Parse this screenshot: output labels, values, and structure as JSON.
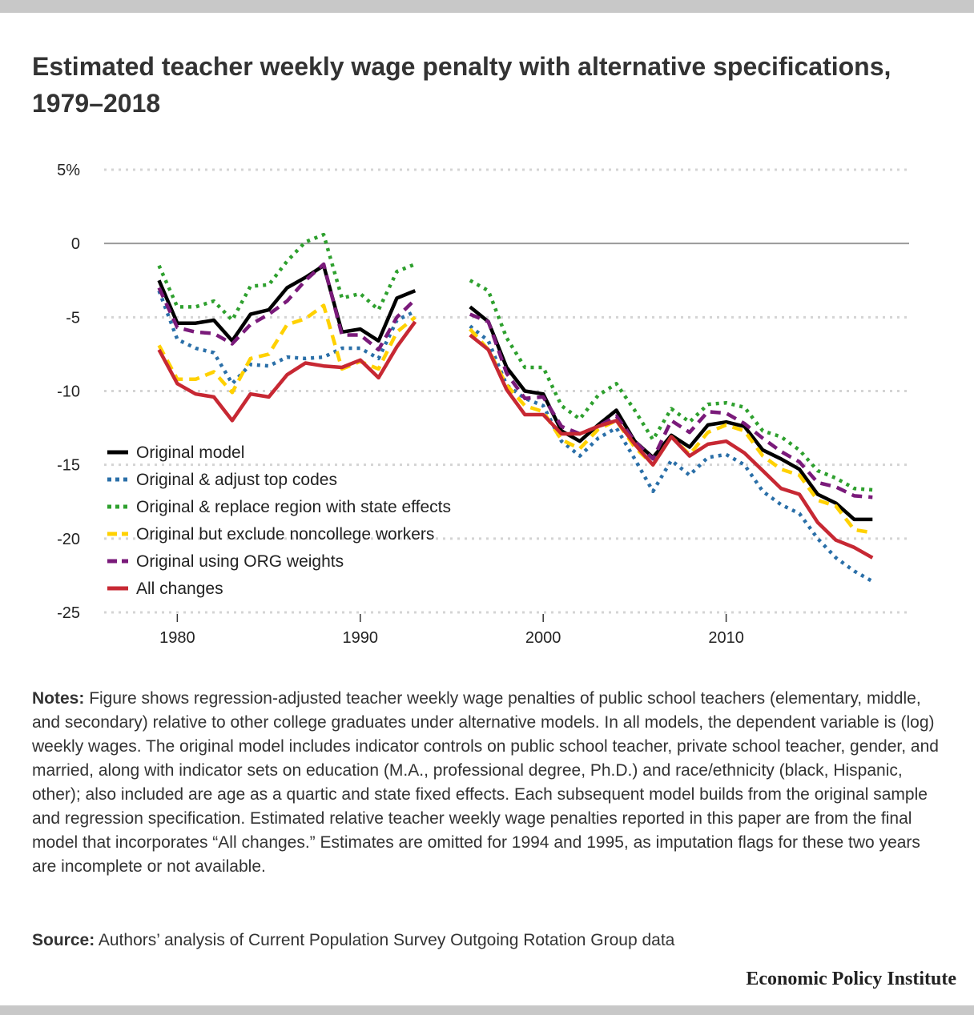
{
  "title": "Estimated teacher weekly wage penalty with alternative specifications, 1979–2018",
  "notes": {
    "label": "Notes:",
    "text": "Figure shows regression-adjusted teacher weekly wage penalties of public school teachers (elementary, middle, and secondary) relative to other college graduates under alternative models. In all models, the dependent variable is (log) weekly wages. The original model includes indicator controls on public school teacher, private school teacher, gender, and married, along with indicator sets on education (M.A., professional degree, Ph.D.) and race/ethnicity (black, Hispanic, other); also included are age as a quartic and state fixed effects. Each subsequent model builds from the original sample and regression specification. Estimated relative teacher weekly wage penalties reported in this paper are from the final model that incorporates “All changes.” Estimates are omitted for 1994 and 1995, as imputation flags for these two years are incomplete or not available."
  },
  "source": {
    "label": "Source:",
    "text": "Authors’ analysis of Current Population Survey Outgoing Rotation Group data"
  },
  "brand": "Economic Policy Institute",
  "chart_data": {
    "type": "line",
    "x": [
      1979,
      1980,
      1981,
      1982,
      1983,
      1984,
      1985,
      1986,
      1987,
      1988,
      1989,
      1990,
      1991,
      1992,
      1993,
      1994,
      1995,
      1996,
      1997,
      1998,
      1999,
      2000,
      2001,
      2002,
      2003,
      2004,
      2005,
      2006,
      2007,
      2008,
      2009,
      2010,
      2011,
      2012,
      2013,
      2014,
      2015,
      2016,
      2017,
      2018
    ],
    "xlim": [
      1976,
      2020
    ],
    "ylim": [
      -25,
      5
    ],
    "yticks": [
      5,
      0,
      -5,
      -10,
      -15,
      -20,
      -25
    ],
    "ytick_labels": [
      "5%",
      "0",
      "-5",
      "-10",
      "-15",
      "-20",
      "-25"
    ],
    "xticks": [
      1980,
      1990,
      2000,
      2010
    ],
    "xtick_labels": [
      "1980",
      "1990",
      "2000",
      "2010"
    ],
    "grid": "horizontal dotted",
    "legend_position": "lower-left",
    "series": [
      {
        "name": "Original model",
        "color": "#000000",
        "dash": "solid",
        "values": [
          -2.5,
          -5.4,
          -5.4,
          -5.2,
          -6.6,
          -4.8,
          -4.5,
          -3.0,
          -2.3,
          -1.5,
          -6.0,
          -5.8,
          -6.6,
          -3.7,
          -3.2,
          null,
          null,
          -4.3,
          -5.3,
          -8.4,
          -10.0,
          -10.2,
          -12.7,
          -13.4,
          -12.3,
          -11.3,
          -13.4,
          -14.5,
          -13.0,
          -13.8,
          -12.3,
          -12.1,
          -12.4,
          -14.0,
          -14.6,
          -15.3,
          -17.0,
          -17.6,
          -18.7,
          -18.7
        ]
      },
      {
        "name": "Original & adjust top codes",
        "color": "#2a6fa8",
        "dash": "dotted",
        "values": [
          -3.2,
          -6.5,
          -7.1,
          -7.4,
          -9.5,
          -8.2,
          -8.3,
          -7.7,
          -7.8,
          -7.7,
          -7.1,
          -7.1,
          -7.8,
          -5.2,
          -4.6,
          null,
          null,
          -5.6,
          -6.6,
          -9.6,
          -10.5,
          -11.0,
          -13.4,
          -14.4,
          -13.2,
          -12.5,
          -14.6,
          -16.8,
          -14.7,
          -15.7,
          -14.5,
          -14.3,
          -15.0,
          -16.8,
          -17.7,
          -18.3,
          -20.0,
          -21.3,
          -22.2,
          -22.9
        ]
      },
      {
        "name": "Original & replace region with state effects",
        "color": "#2ea02e",
        "dash": "dotted",
        "values": [
          -1.5,
          -4.3,
          -4.3,
          -3.9,
          -5.2,
          -2.9,
          -2.8,
          -1.2,
          0.1,
          0.6,
          -3.7,
          -3.4,
          -4.5,
          -1.9,
          -1.4,
          null,
          null,
          -2.5,
          -3.2,
          -6.4,
          -8.4,
          -8.4,
          -11.0,
          -11.9,
          -10.3,
          -9.5,
          -11.3,
          -13.3,
          -11.2,
          -12.1,
          -10.9,
          -10.8,
          -11.1,
          -12.7,
          -13.1,
          -14.0,
          -15.4,
          -15.9,
          -16.6,
          -16.7
        ]
      },
      {
        "name": "Original but exclude noncollege workers",
        "color": "#ffd100",
        "dash": "dashed",
        "values": [
          -6.9,
          -9.2,
          -9.2,
          -8.7,
          -10.1,
          -7.8,
          -7.5,
          -5.5,
          -5.1,
          -4.2,
          -8.5,
          -8.0,
          -8.5,
          -6.0,
          -5.0,
          null,
          null,
          -5.8,
          -7.2,
          -9.6,
          -11.0,
          -11.4,
          -13.3,
          -13.9,
          -12.6,
          -12.0,
          -13.8,
          -15.0,
          -13.1,
          -14.3,
          -12.8,
          -12.3,
          -12.7,
          -14.4,
          -15.3,
          -15.7,
          -17.4,
          -17.8,
          -19.4,
          -19.6
        ]
      },
      {
        "name": "Original using ORG weights",
        "color": "#7a1a7a",
        "dash": "dashed",
        "values": [
          -3.0,
          -5.7,
          -6.0,
          -6.1,
          -6.8,
          -5.5,
          -4.8,
          -3.9,
          -2.5,
          -1.4,
          -6.2,
          -6.2,
          -7.2,
          -5.0,
          -3.8,
          null,
          null,
          -4.8,
          -5.3,
          -8.8,
          -10.5,
          -10.4,
          -12.4,
          -12.9,
          -12.4,
          -11.7,
          -13.4,
          -14.6,
          -12.0,
          -12.8,
          -11.4,
          -11.5,
          -12.2,
          -13.2,
          -14.1,
          -14.8,
          -16.2,
          -16.5,
          -17.1,
          -17.2
        ]
      },
      {
        "name": "All changes",
        "color": "#c72833",
        "dash": "solid",
        "values": [
          -7.2,
          -9.5,
          -10.2,
          -10.4,
          -12.0,
          -10.2,
          -10.4,
          -8.9,
          -8.1,
          -8.3,
          -8.4,
          -7.9,
          -9.1,
          -7.0,
          -5.3,
          null,
          null,
          -6.2,
          -7.2,
          -9.9,
          -11.6,
          -11.6,
          -12.9,
          -12.9,
          -12.4,
          -12.0,
          -13.6,
          -15.0,
          -13.1,
          -14.4,
          -13.6,
          -13.4,
          -14.2,
          -15.4,
          -16.6,
          -17.0,
          -18.9,
          -20.1,
          -20.6,
          -21.3
        ]
      }
    ]
  }
}
